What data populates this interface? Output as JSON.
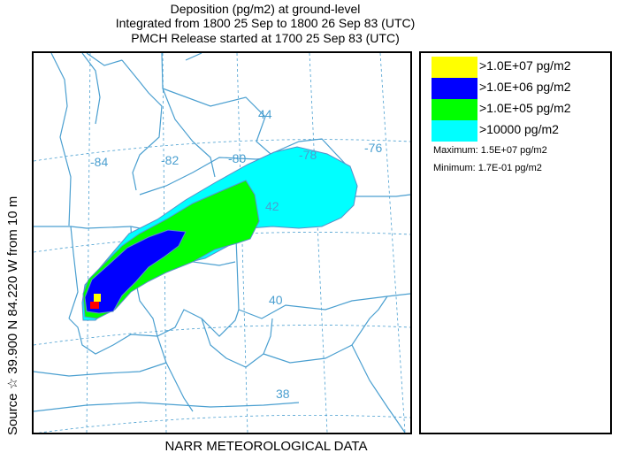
{
  "header": {
    "line1": "Deposition  (pg/m2) at ground-level",
    "line2": "Integrated from 1800 25 Sep to 1800 26 Sep 83 (UTC)",
    "line3": "PMCH Release started at 1700 25 Sep 83 (UTC)"
  },
  "side_label": "Source ☆ 39.900  N  84.220  W    from    10 m",
  "footer": "NARR METEOROLOGICAL DATA",
  "map": {
    "longitude_labels": [
      "-84",
      "-82",
      "-80",
      "-78",
      "-76"
    ],
    "latitude_labels": [
      "44",
      "42",
      "40",
      "38"
    ],
    "source_marker": "red-square-marker",
    "colors": {
      "grid": "#4a9fd0",
      "boundaries": "#4a9fd0",
      "contour_lines": "#5a8fc8",
      "label_color": "#4a9fd0"
    }
  },
  "legend": {
    "items": [
      {
        "label": ">1.0E+07 pg/m2",
        "color": "#ffff00"
      },
      {
        "label": ">1.0E+06 pg/m2",
        "color": "#0000ff"
      },
      {
        "label": ">1.0E+05 pg/m2",
        "color": "#00ff00"
      },
      {
        "label": ">10000 pg/m2",
        "color": "#00ffff"
      }
    ],
    "maximum": "Maximum: 1.5E+07 pg/m2",
    "minimum": "Minimum: 1.7E-01 pg/m2"
  }
}
